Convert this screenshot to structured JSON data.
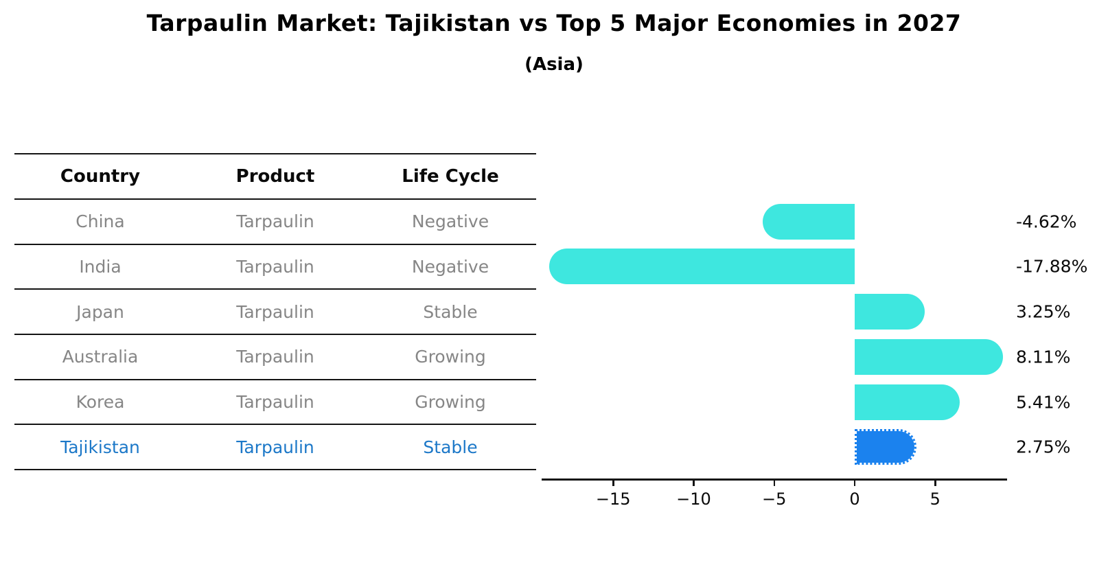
{
  "title": "Tarpaulin Market: Tajikistan vs Top 5 Major Economies in 2027",
  "subtitle": "(Asia)",
  "table": {
    "headers": [
      "Country",
      "Product",
      "Life Cycle"
    ],
    "rows": [
      {
        "country": "China",
        "product": "Tarpaulin",
        "life_cycle": "Negative",
        "highlight": false
      },
      {
        "country": "India",
        "product": "Tarpaulin",
        "life_cycle": "Negative",
        "highlight": false
      },
      {
        "country": "Japan",
        "product": "Tarpaulin",
        "life_cycle": "Stable",
        "highlight": false
      },
      {
        "country": "Australia",
        "product": "Tarpaulin",
        "life_cycle": "Growing",
        "highlight": false
      },
      {
        "country": "Korea",
        "product": "Tarpaulin",
        "life_cycle": "Growing",
        "highlight": false
      },
      {
        "country": "Tajikistan",
        "product": "Tarpaulin",
        "life_cycle": "Stable",
        "highlight": true
      }
    ]
  },
  "chart_data": {
    "type": "bar",
    "orientation": "horizontal",
    "title": "Tarpaulin Market: Tajikistan vs Top 5 Major Economies in 2027",
    "subtitle": "(Asia)",
    "categories": [
      "China",
      "India",
      "Japan",
      "Australia",
      "Korea",
      "Tajikistan"
    ],
    "values": [
      -4.62,
      -17.88,
      3.25,
      8.11,
      5.41,
      2.75
    ],
    "value_labels": [
      "-4.62%",
      "-17.88%",
      "3.25%",
      "8.11%",
      "5.41%",
      "2.75%"
    ],
    "unit": "%",
    "highlight_category": "Tajikistan",
    "xlim": [
      -19.45,
      9.47
    ],
    "x_ticks": [
      {
        "value": -15,
        "label": "−15"
      },
      {
        "value": -10,
        "label": "−10"
      },
      {
        "value": -5,
        "label": "−5"
      },
      {
        "value": 0,
        "label": "0"
      },
      {
        "value": 5,
        "label": "5"
      }
    ],
    "grid": false,
    "legend": null
  },
  "colors": {
    "bar_cyan": "#3ee7df",
    "highlight_blue": "#1b82ee",
    "highlight_text_blue": "#1c78c8",
    "table_text_gray": "#868686",
    "line_black": "#141414"
  }
}
